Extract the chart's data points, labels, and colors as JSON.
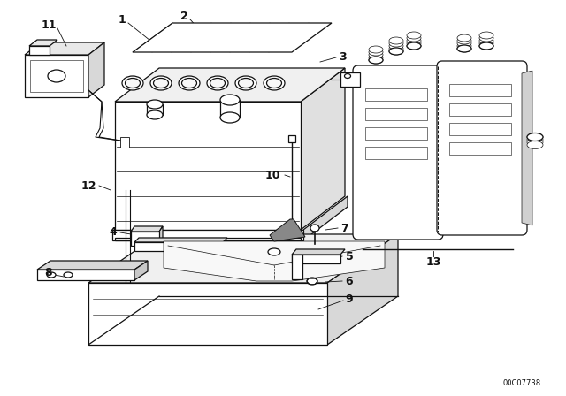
{
  "bg_color": "#ffffff",
  "line_color": "#111111",
  "part_number_text": "00C07738",
  "figsize": [
    6.4,
    4.48
  ],
  "dpi": 100
}
